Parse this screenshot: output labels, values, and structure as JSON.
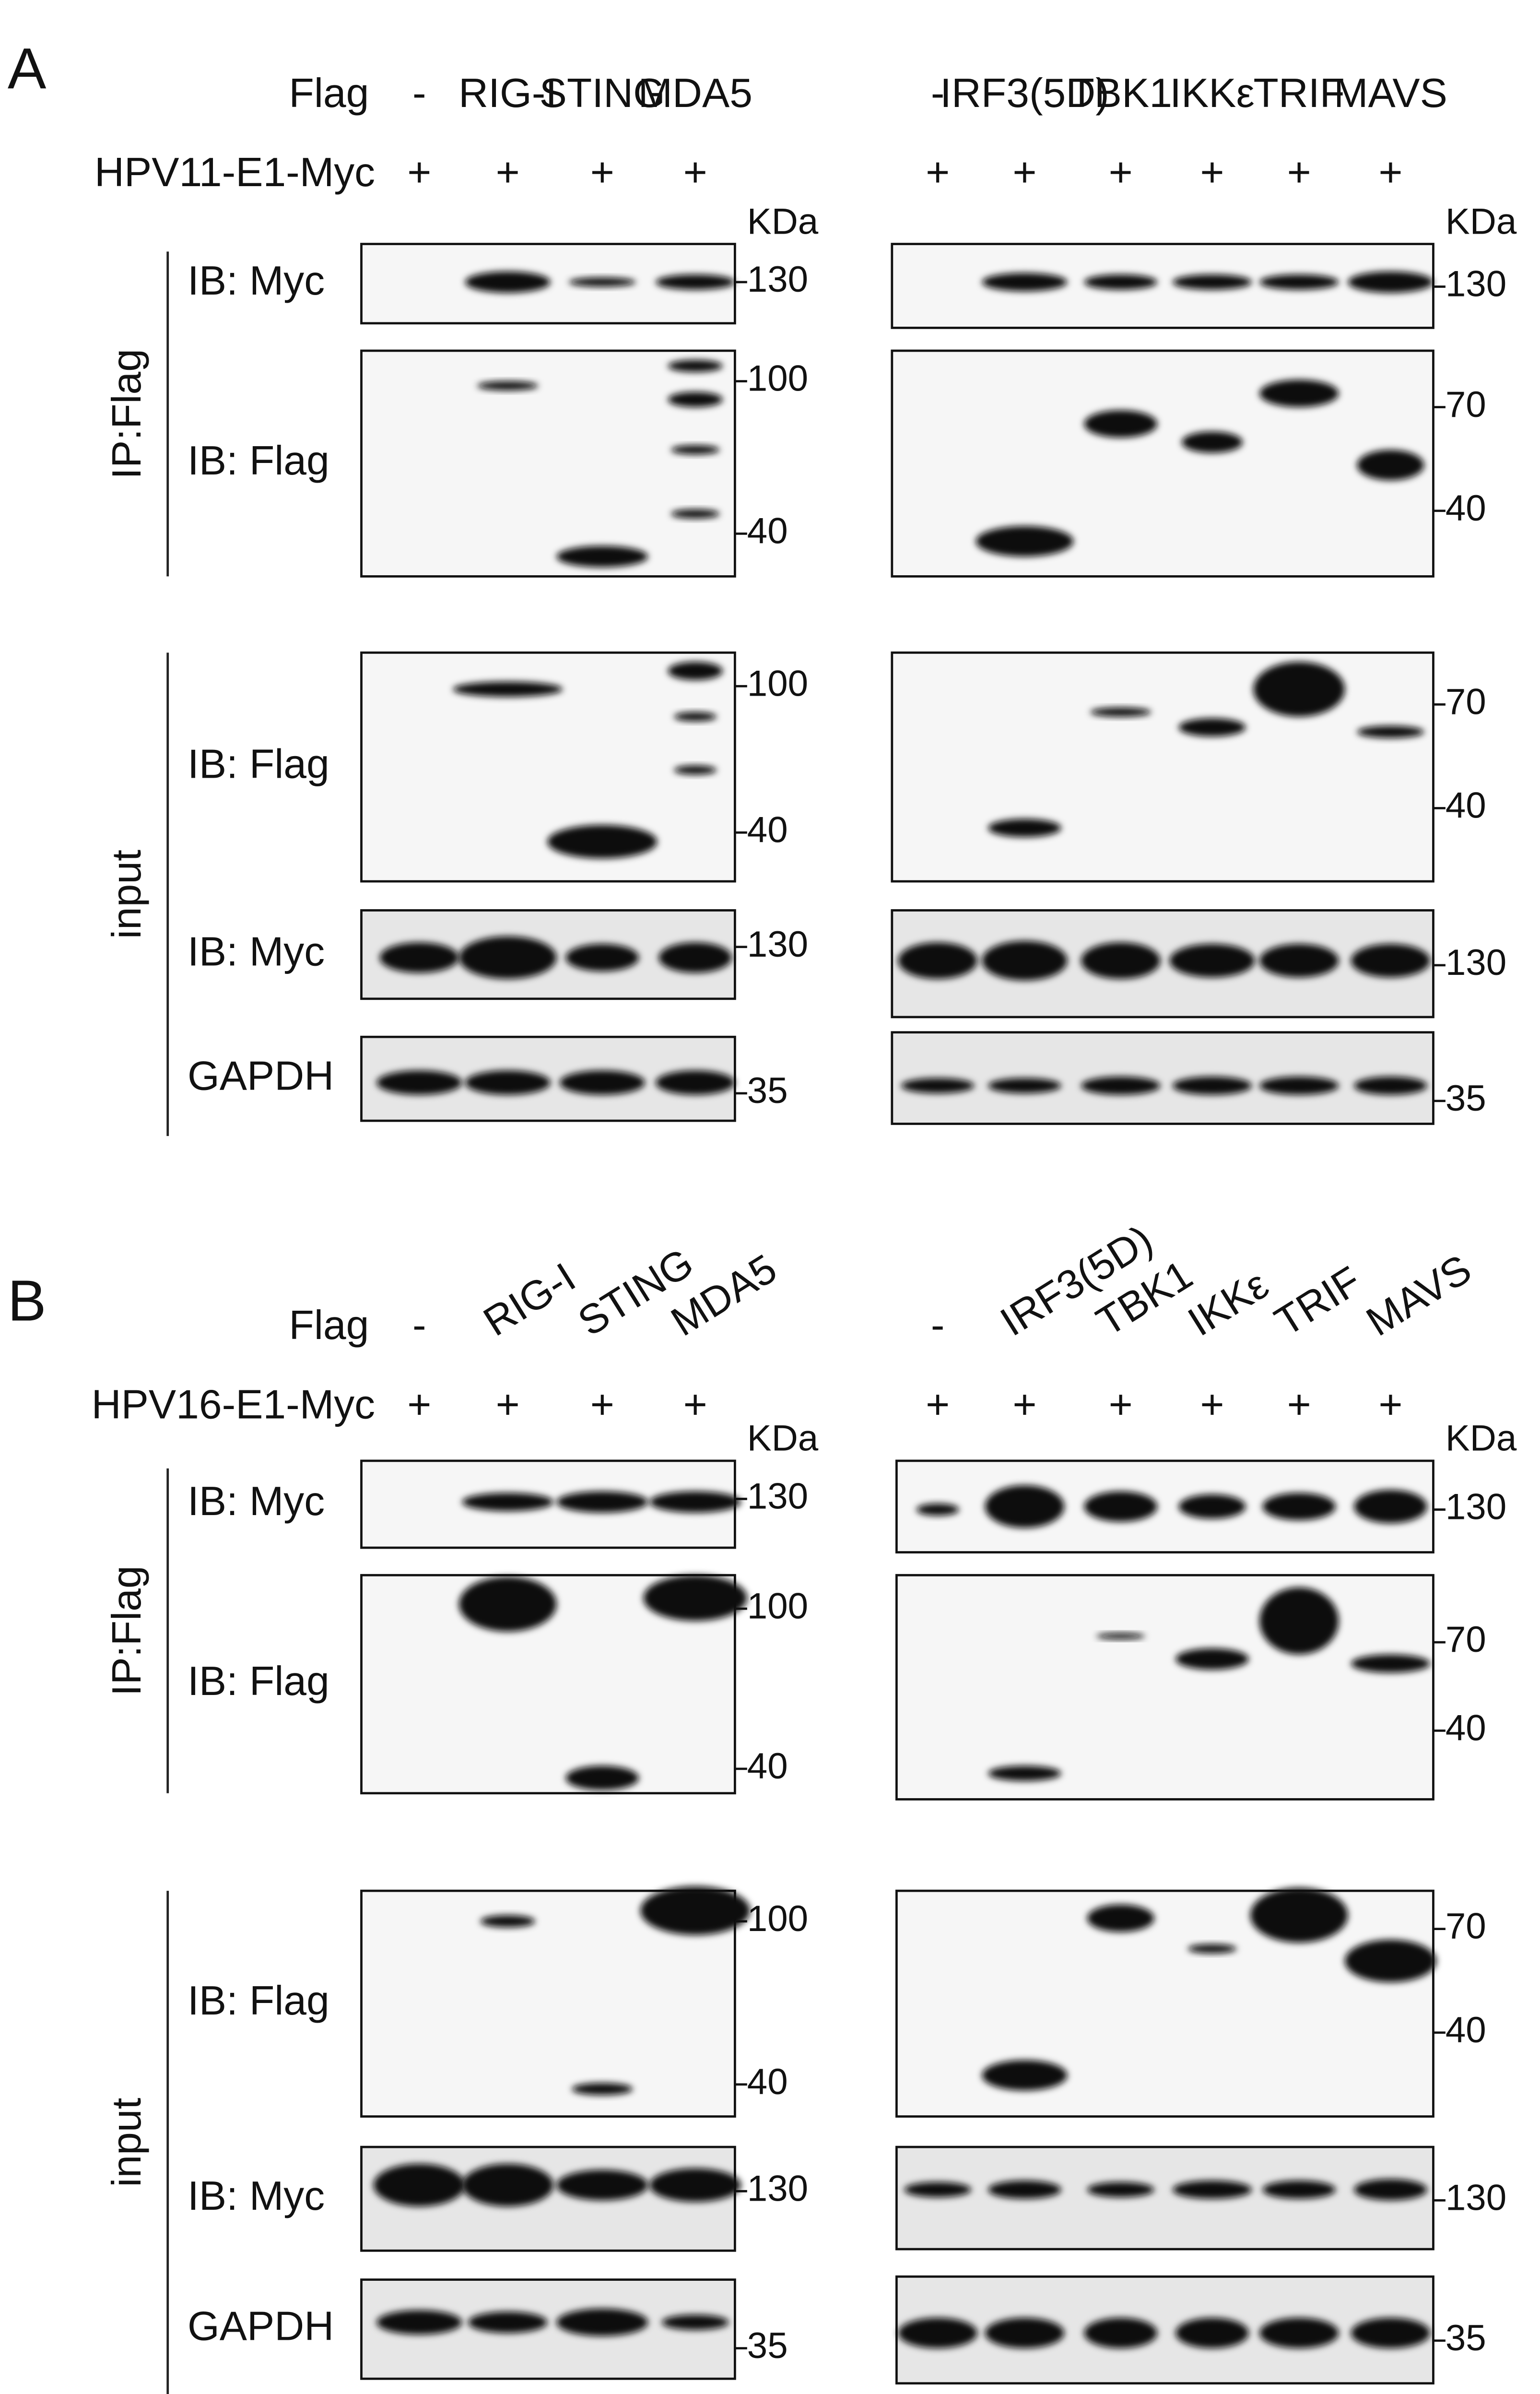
{
  "panels": [
    {
      "letter": "A",
      "row_labels": [
        "Flag",
        "HPV11-E1-Myc"
      ],
      "groups": [
        "IP:Flag",
        "input"
      ],
      "left": {
        "lanes": [
          "-",
          "RIG-I",
          "STING",
          "MDA5"
        ],
        "plus": [
          "+",
          "+",
          "+",
          "+"
        ],
        "kda": "KDa",
        "blots": [
          {
            "label": "IB: Myc",
            "markers": [
              "130"
            ]
          },
          {
            "label": "IB: Flag",
            "markers": [
              "100",
              "40"
            ]
          },
          {
            "label": "IB: Flag",
            "markers": [
              "100",
              "40"
            ]
          },
          {
            "label": "IB: Myc",
            "markers": [
              "130"
            ]
          },
          {
            "label": "GAPDH",
            "markers": [
              "35"
            ]
          }
        ]
      },
      "right": {
        "lanes": [
          "-",
          "IRF3(5D)",
          "TBK1",
          "IKKε",
          "TRIF",
          "MAVS"
        ],
        "plus": [
          "+",
          "+",
          "+",
          "+",
          "+",
          "+"
        ],
        "kda": "KDa",
        "blots": [
          {
            "markers": [
              "130"
            ]
          },
          {
            "markers": [
              "70",
              "40"
            ]
          },
          {
            "markers": [
              "70",
              "40"
            ]
          },
          {
            "markers": [
              "130"
            ]
          },
          {
            "markers": [
              "35"
            ]
          }
        ]
      }
    },
    {
      "letter": "B",
      "row_labels": [
        "Flag",
        "HPV16-E1-Myc"
      ],
      "groups": [
        "IP:Flag",
        "input"
      ],
      "left": {
        "lanes": [
          "-",
          "RIG-I",
          "STING",
          "MDA5"
        ],
        "plus": [
          "+",
          "+",
          "+",
          "+"
        ],
        "kda": "KDa",
        "blots": [
          {
            "label": "IB: Myc",
            "markers": [
              "130"
            ]
          },
          {
            "label": "IB: Flag",
            "markers": [
              "100",
              "40"
            ]
          },
          {
            "label": "IB: Flag",
            "markers": [
              "100",
              "40"
            ]
          },
          {
            "label": "IB: Myc",
            "markers": [
              "130"
            ]
          },
          {
            "label": "GAPDH",
            "markers": [
              "35"
            ]
          }
        ]
      },
      "right": {
        "lanes": [
          "-",
          "IRF3(5D)",
          "TBK1",
          "IKKε",
          "TRIF",
          "MAVS"
        ],
        "plus": [
          "+",
          "+",
          "+",
          "+",
          "+",
          "+"
        ],
        "kda": "KDa",
        "blots": [
          {
            "markers": [
              "130"
            ]
          },
          {
            "markers": [
              "70",
              "40"
            ]
          },
          {
            "markers": [
              "70",
              "40"
            ]
          },
          {
            "markers": [
              "130"
            ]
          },
          {
            "markers": [
              "35"
            ]
          }
        ]
      }
    }
  ]
}
